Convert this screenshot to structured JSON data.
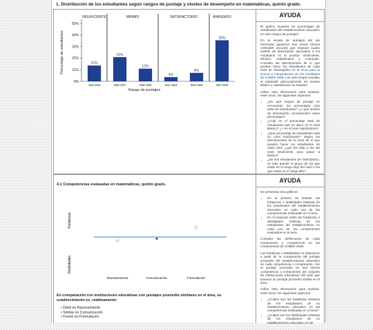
{
  "section1": {
    "title": "1. Distribución de los estudiantes según rangos de puntaje y niveles de desempeño en matemáticas, quinto grado."
  },
  "chart_data": {
    "type": "bar",
    "levels": [
      "INSUFICIENTE",
      "MÍNIMO",
      "SATISFACTORIO",
      "AVANZADO"
    ],
    "categories": [
      "100-264",
      "265-297",
      "298-330",
      "331-363",
      "364-396",
      "397-500"
    ],
    "values": [
      15,
      23,
      12,
      4,
      8,
      39
    ],
    "value_labels": [
      "15%",
      "23%",
      "12%",
      "4%",
      "8%",
      "39%"
    ],
    "yticks": [
      "0%",
      "11%",
      "22%",
      "33%",
      "44%",
      "55%"
    ],
    "ytick_values": [
      0,
      11,
      22,
      33,
      44,
      55
    ],
    "ylim": [
      0,
      55
    ],
    "xlabel": "Rango de puntajes",
    "ylabel": "Porcentaje de estudiantes",
    "colors": {
      "bar": "#1f3f91",
      "label": "#1f3f91"
    }
  },
  "help1": {
    "title": "AYUDA",
    "p1": "El gráfico muestra los porcentajes de estudiantes del establecimiento educativo en seis rangos de puntajes.",
    "p2a": "En la escala de puntajes del eje horizontal aparecen tres líneas (líneas verticales oscuras) que separan cuatro niveles de desempeño asociados a los resultados en la prueba: Insuficiente, Mínimo, Satisfactorio y Avanzado. Consulte las descripciones de lo que pueden hacer los estudiantes de cada nivel de desempeño en la ",
    "p2link": "Guía para la lectura e interpretación de los resultados de SABER 2009",
    "p2b": ". Los seis rangos resultan al subdividir adicionalmente los niveles Básico y Satisfactorio en mitades.",
    "p3": "Utilice esta información para analizar, entre otros, los siguientes aspectos:",
    "items": [
      "¿En qué rangos de puntaje se encuentran los porcentajes más altos de estudiantes? ¿A qué niveles de desempeño corresponden estos porcentajes?",
      "¿Cuál es el porcentaje total de estudiantes que se ubicó en el nivel Básico? ¿Y en el nivel Satisfactorio?",
      "¿Qué porcentaje de estudiantes está en nivel Insuficiente? Según las descripciones de la Guía de lo que pueden hacer los estudiantes de cada nivel, ¿qué les falta a los del nivel Insuficiente para pasar a Básico?",
      "¿De sus estudiantes de nivel Básico, es más grande el grupo de los que están en el rango bajo del nivel o los que están en el rango alto?"
    ]
  },
  "section2": {
    "title": "4.1 Competencias evaluadas en matemáticas, quinto grado.",
    "label_top": "Fortalezas",
    "label_bottom": "Debilidades",
    "competencies": [
      "Razonamiento",
      "Comunicación",
      "Formulación"
    ],
    "marker_symbols": [
      "+",
      "■",
      "+"
    ],
    "comparison_text": "En comparación con instituciones educativas con puntajes promedio similares en el área, su establecimiento es, relativamente:",
    "results": [
      "Débil en Razonamiento",
      "Similar en Comunicación",
      "Fuerte en Formulación"
    ]
  },
  "help2": {
    "title": "AYUDA",
    "p1": "Se presentan dos gráficos:",
    "items1": [
      "En el primero se ilustran las fortalezas o debilidades relativas de los estudiantes del establecimiento educativo en cada una de las competencias evaluadas en el área.",
      "En el segundo están las fortalezas o debilidades relativas de los estudiantes del establecimiento en cada uno de los componentes evaluados en el área."
    ],
    "p2": "Consulte las definiciones de cada componente y competencia en los Lineamientos de SABER 2009.",
    "p3": "Las fortalezas o debilidades se obtuvieron a partir de la comparación del puntaje promedio del establecimiento educativo en cada competencia o componente, con el puntaje promedio en esa misma competencia o componente del conjunto de instituciones educativas del país que tuvieron un puntaje promedio similar en el área.",
    "p4": "Utilice esta información para analizar, entre otros, los siguientes aspectos:",
    "items2": [
      "¿Cuáles son las fortalezas relativas de los estudiantes de su establecimiento educativo en las competencias evaluadas en el área?",
      "¿Cuáles son las debilidades relativas de los estudiantes de su establecimiento educativo en las"
    ]
  }
}
